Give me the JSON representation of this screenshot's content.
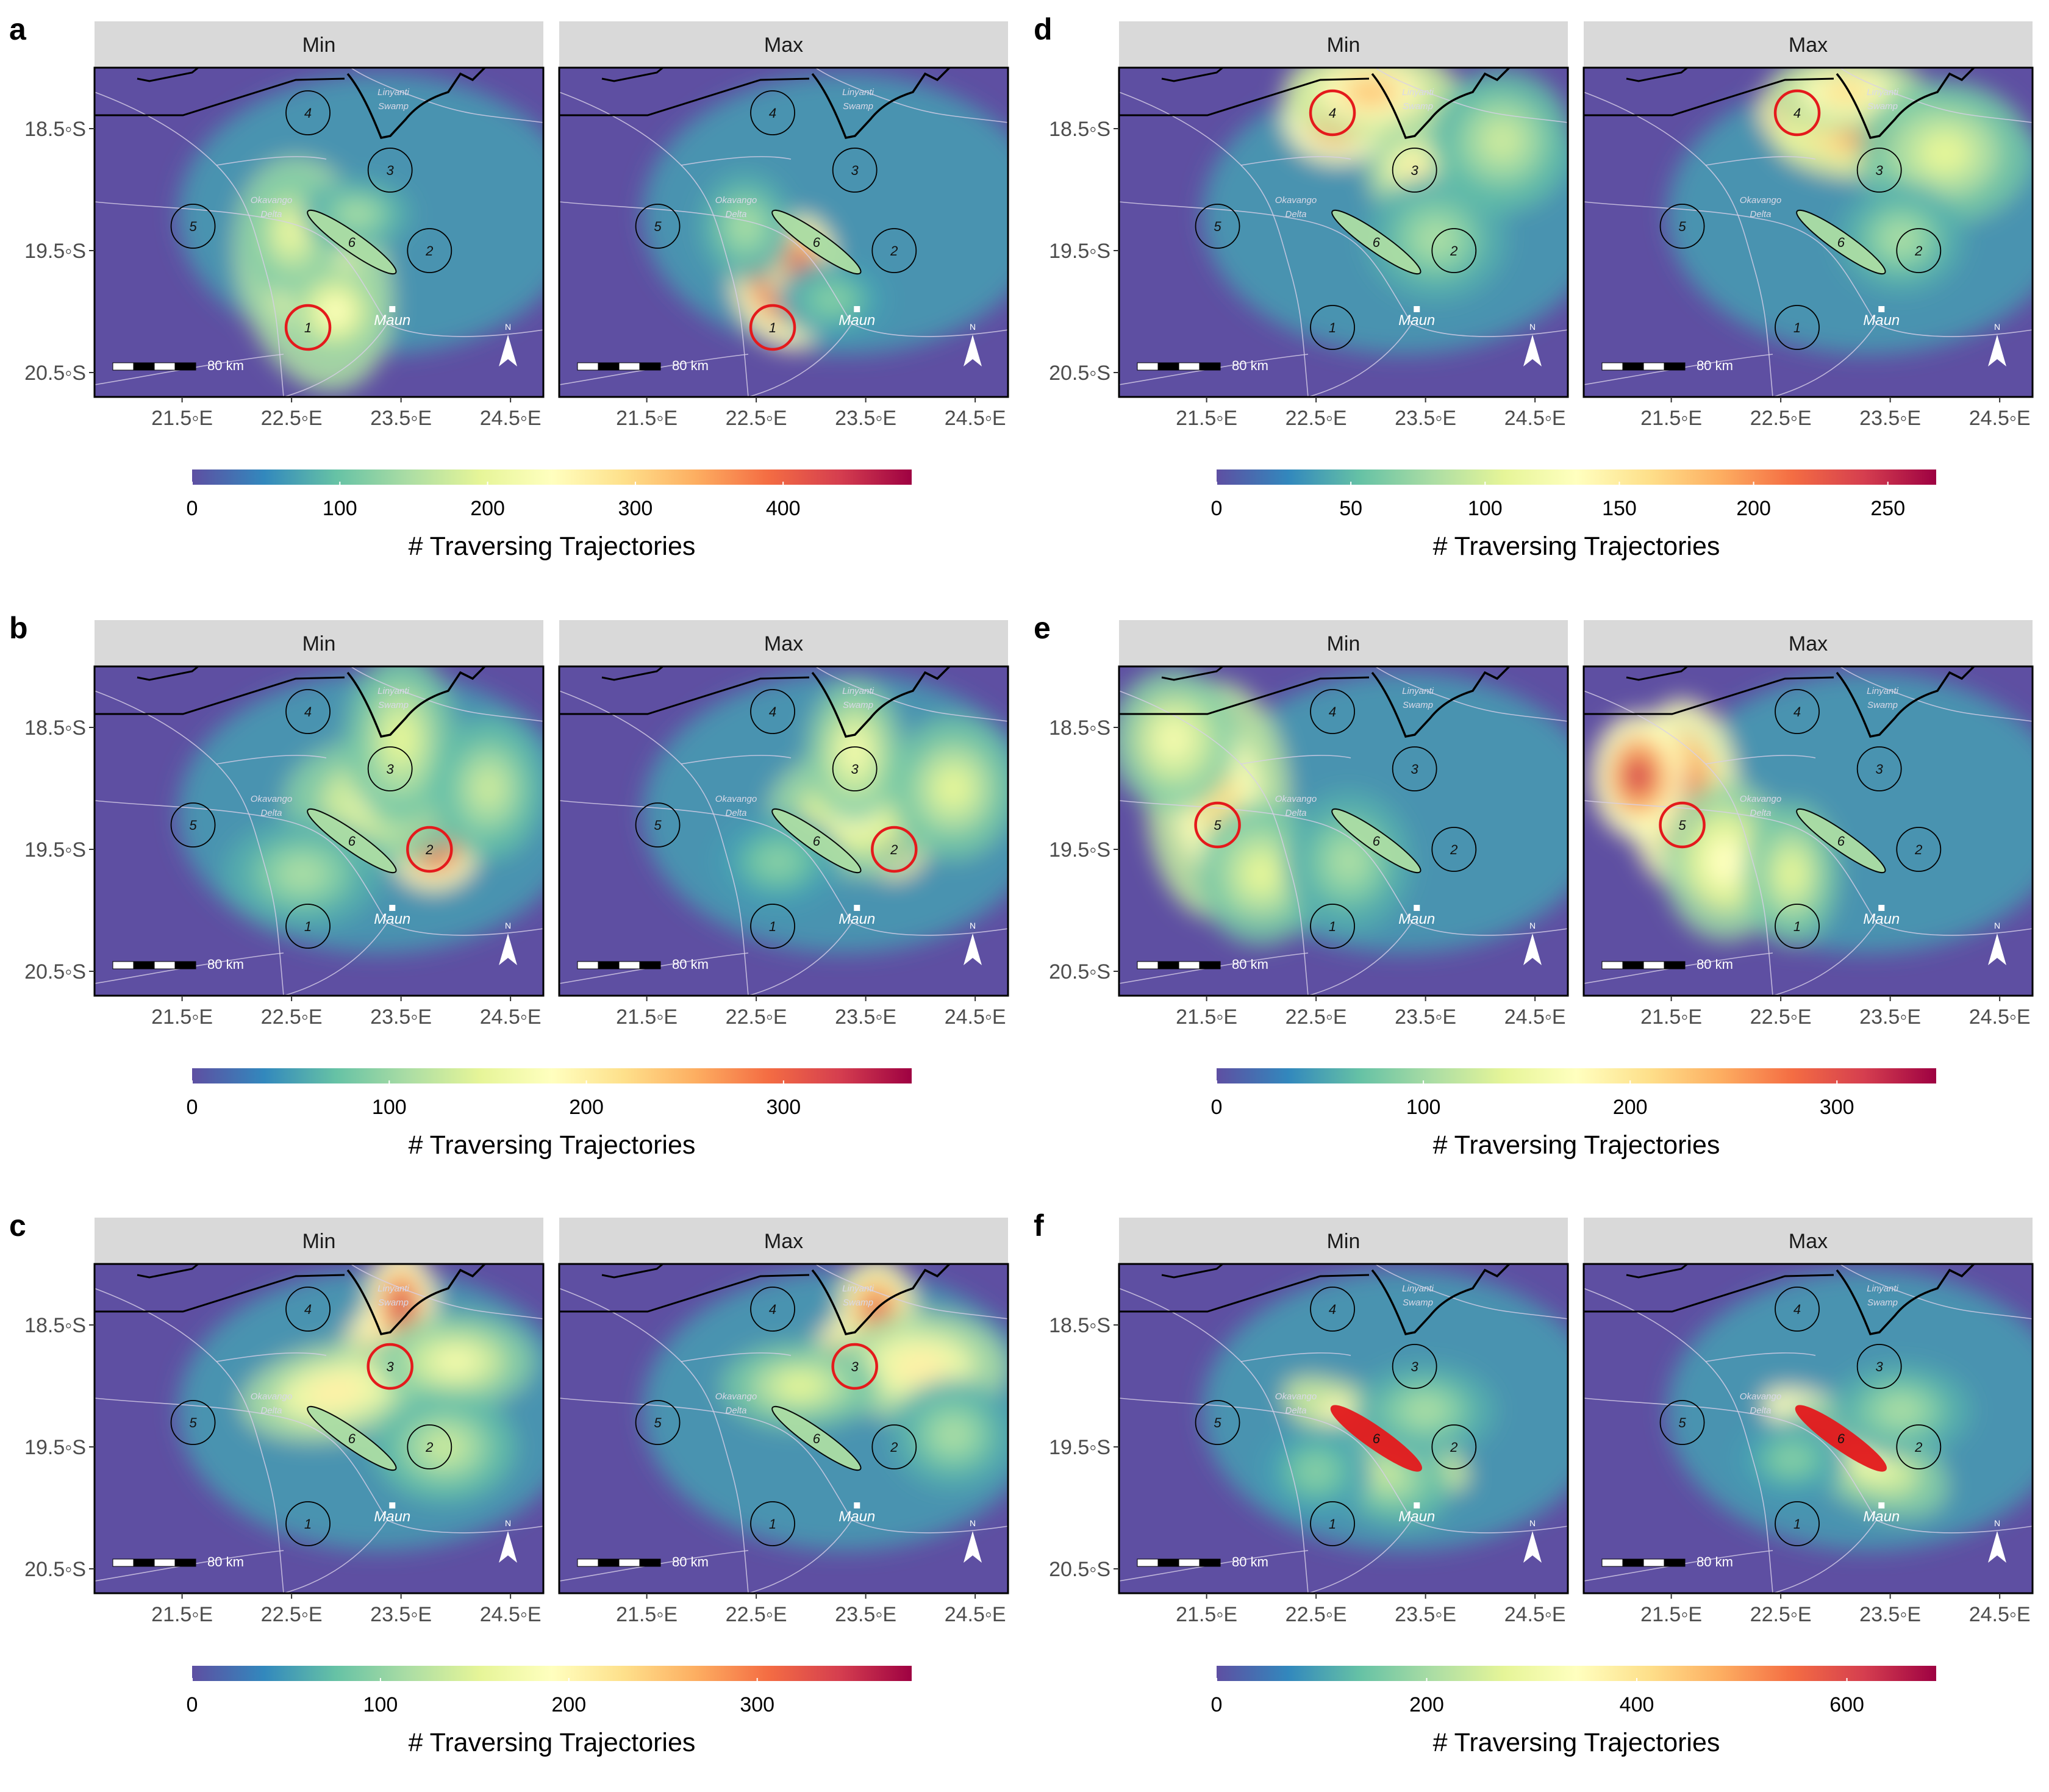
{
  "colors": {
    "background": "#5e4fa2",
    "palette": [
      "#5e4fa2",
      "#3288bd",
      "#66c2a5",
      "#abdda4",
      "#e6f598",
      "#ffffbf",
      "#fee08b",
      "#fdae61",
      "#f46d43",
      "#d53e4f",
      "#9e0142"
    ],
    "highlight_circle": "#e41a1c",
    "site_circle": "#000000",
    "boundary": "#000000",
    "rivers": "#d8cfe8",
    "strip": "#d9d9d9"
  },
  "facet_labels": [
    "Min",
    "Max"
  ],
  "x_ticks": [
    "21.5◦E",
    "22.5◦E",
    "23.5◦E",
    "24.5◦E"
  ],
  "y_ticks": [
    "18.5◦S",
    "19.5◦S",
    "20.5◦S"
  ],
  "colorbar_title": "# Traversing Trajectories",
  "map_annotations": {
    "sites": [
      "1",
      "2",
      "3",
      "4",
      "5",
      "6"
    ],
    "linyanti_line1": "Linyanti",
    "linyanti_line2": "Swamp",
    "okavango_line1": "Okavango",
    "okavango_line2": "Delta",
    "town": "Maun",
    "scale": "80 km",
    "north": "N"
  },
  "chart_data": [
    {
      "type": "heatmap",
      "panel": "a",
      "facets": [
        "Min",
        "Max"
      ],
      "source_site": "1",
      "highlighted_site": "1",
      "colorbar": {
        "ticks": [
          0,
          100,
          200,
          300,
          400
        ],
        "limits": [
          0,
          487
        ]
      },
      "xlim": [
        "20.7◦E",
        "24.8◦E"
      ],
      "ylim": [
        "20.7◦S",
        "18.0◦S"
      ]
    },
    {
      "type": "heatmap",
      "panel": "b",
      "facets": [
        "Min",
        "Max"
      ],
      "source_site": "2",
      "highlighted_site": "2",
      "colorbar": {
        "ticks": [
          0,
          100,
          200,
          300
        ],
        "limits": [
          0,
          365
        ]
      },
      "xlim": [
        "20.7◦E",
        "24.8◦E"
      ],
      "ylim": [
        "20.7◦S",
        "18.0◦S"
      ]
    },
    {
      "type": "heatmap",
      "panel": "c",
      "facets": [
        "Min",
        "Max"
      ],
      "source_site": "3",
      "highlighted_site": "3",
      "colorbar": {
        "ticks": [
          0,
          100,
          200,
          300
        ],
        "limits": [
          0,
          382
        ]
      },
      "xlim": [
        "20.7◦E",
        "24.8◦E"
      ],
      "ylim": [
        "20.7◦S",
        "18.0◦S"
      ]
    },
    {
      "type": "heatmap",
      "panel": "d",
      "facets": [
        "Min",
        "Max"
      ],
      "source_site": "4",
      "highlighted_site": "4",
      "colorbar": {
        "ticks": [
          0,
          50,
          100,
          150,
          200,
          250
        ],
        "limits": [
          0,
          268
        ]
      },
      "xlim": [
        "20.7◦E",
        "24.8◦E"
      ],
      "ylim": [
        "20.7◦S",
        "18.0◦S"
      ]
    },
    {
      "type": "heatmap",
      "panel": "e",
      "facets": [
        "Min",
        "Max"
      ],
      "source_site": "5",
      "highlighted_site": "5",
      "colorbar": {
        "ticks": [
          0,
          100,
          200,
          300
        ],
        "limits": [
          0,
          348
        ]
      },
      "xlim": [
        "20.7◦E",
        "24.8◦E"
      ],
      "ylim": [
        "20.7◦S",
        "18.0◦S"
      ]
    },
    {
      "type": "heatmap",
      "panel": "f",
      "facets": [
        "Min",
        "Max"
      ],
      "source_site": "6",
      "highlighted_site": "6",
      "colorbar": {
        "ticks": [
          0,
          200,
          400,
          600
        ],
        "limits": [
          0,
          685
        ]
      },
      "xlim": [
        "20.7◦E",
        "24.8◦E"
      ],
      "ylim": [
        "20.7◦S",
        "18.0◦S"
      ]
    }
  ]
}
